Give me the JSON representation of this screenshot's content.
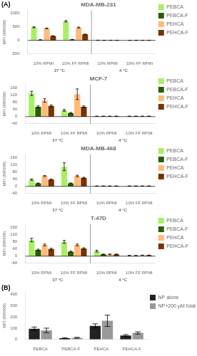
{
  "chart_data": [
    {
      "type": "bar",
      "title": "MDA-MB-231",
      "panel_label": "(A)",
      "categories": [
        "10% RPMI",
        "10% FF RPMI",
        "10% RPMI",
        "10% FF RPMI"
      ],
      "series": [
        {
          "name": "PEBCA",
          "color": "#aaee66",
          "values": [
            480,
            700,
            5,
            3
          ],
          "errors": [
            18,
            25,
            3,
            2
          ]
        },
        {
          "name": "PEBCA-F",
          "color": "#2a5e00",
          "values": [
            20,
            30,
            3,
            3
          ],
          "errors": [
            5,
            5,
            2,
            2
          ]
        },
        {
          "name": "PEHCA",
          "color": "#ffbb77",
          "values": [
            440,
            470,
            4,
            3
          ],
          "errors": [
            15,
            18,
            2,
            2
          ]
        },
        {
          "name": "PEHCA-F",
          "color": "#7a3300",
          "values": [
            160,
            220,
            3,
            3
          ],
          "errors": [
            8,
            12,
            2,
            2
          ]
        }
      ],
      "ylabel": "MFI (NR668)",
      "ylim": [
        -500,
        1100
      ],
      "yticks": [
        -500,
        0,
        500,
        1000
      ],
      "annotations": [
        "37 °C",
        "4 °C"
      ],
      "legend": "right",
      "grid": false
    },
    {
      "type": "bar",
      "title": "MCF-7",
      "categories": [
        "10% RPMI",
        "10% FF RPMI",
        "10% RPMI",
        "10% FF RPMI"
      ],
      "series": [
        {
          "name": "PEBCA",
          "color": "#aaee66",
          "values": [
            130,
            35,
            2,
            2
          ],
          "errors": [
            12,
            5,
            1,
            1
          ]
        },
        {
          "name": "PEBCA-F",
          "color": "#2a5e00",
          "values": [
            55,
            20,
            2,
            2
          ],
          "errors": [
            5,
            3,
            1,
            1
          ]
        },
        {
          "name": "PEHCA",
          "color": "#ffbb77",
          "values": [
            90,
            125,
            2,
            2
          ],
          "errors": [
            10,
            30,
            1,
            1
          ]
        },
        {
          "name": "PEHCA-F",
          "color": "#7a3300",
          "values": [
            60,
            55,
            2,
            2
          ],
          "errors": [
            5,
            5,
            1,
            1
          ]
        }
      ],
      "ylabel": "MFI (NR668)",
      "ylim": [
        -40,
        180
      ],
      "yticks": [
        -40,
        0,
        40,
        80,
        120,
        160
      ],
      "annotations": [
        "37 °C",
        "4 °C"
      ],
      "legend": "right",
      "grid": false
    },
    {
      "type": "bar",
      "title": "MDA-MB-468",
      "categories": [
        "10% RPMI",
        "10% FF RPMI",
        "10% RPMI",
        "10% FF RPMI"
      ],
      "series": [
        {
          "name": "PEBCA",
          "color": "#aaee66",
          "values": [
            38,
            110,
            2,
            2
          ],
          "errors": [
            4,
            22,
            1,
            1
          ]
        },
        {
          "name": "PEBCA-F",
          "color": "#2a5e00",
          "values": [
            17,
            17,
            2,
            2
          ],
          "errors": [
            2,
            2,
            1,
            1
          ]
        },
        {
          "name": "PEHCA",
          "color": "#ffbb77",
          "values": [
            58,
            58,
            2,
            2
          ],
          "errors": [
            3,
            4,
            1,
            1
          ]
        },
        {
          "name": "PEHCA-F",
          "color": "#7a3300",
          "values": [
            38,
            48,
            2,
            2
          ],
          "errors": [
            3,
            3,
            1,
            1
          ]
        }
      ],
      "ylabel": "MFI (NR668)",
      "ylim": [
        -40,
        180
      ],
      "yticks": [
        -40,
        0,
        40,
        80,
        120,
        160
      ],
      "annotations": [
        "37 °C",
        "4 °C"
      ],
      "legend": "right",
      "grid": false
    },
    {
      "type": "bar",
      "title": "T-47D",
      "categories": [
        "10% RPMI",
        "10% FF RPMI",
        "10% RPMI",
        "10% FF RPMI"
      ],
      "series": [
        {
          "name": "PEBCA",
          "color": "#aaee66",
          "values": [
            90,
            80,
            28,
            3
          ],
          "errors": [
            10,
            8,
            5,
            2
          ]
        },
        {
          "name": "PEBCA-F",
          "color": "#2a5e00",
          "values": [
            35,
            25,
            10,
            3
          ],
          "errors": [
            4,
            3,
            2,
            1
          ]
        },
        {
          "name": "PEHCA",
          "color": "#ffbb77",
          "values": [
            63,
            63,
            10,
            5
          ],
          "errors": [
            5,
            5,
            2,
            1
          ]
        },
        {
          "name": "PEHCA-F",
          "color": "#7a3300",
          "values": [
            40,
            43,
            10,
            5
          ],
          "errors": [
            4,
            4,
            2,
            1
          ]
        }
      ],
      "ylabel": "MFI (NR668)",
      "ylim": [
        -40,
        180
      ],
      "yticks": [
        -40,
        0,
        40,
        80,
        120,
        160
      ],
      "annotations": [
        "37 °C",
        "4 °C"
      ],
      "legend": "right",
      "grid": false
    },
    {
      "type": "bar",
      "panel_label": "(B)",
      "categories": [
        "PEBCA",
        "PEBCA-F",
        "PEHCA",
        "PEHCA-F"
      ],
      "series": [
        {
          "name": "NP alone",
          "color": "#222222",
          "values": [
            95,
            12,
            120,
            35
          ],
          "errors": [
            15,
            4,
            18,
            8
          ]
        },
        {
          "name": "NP+200 μM folate",
          "color": "#999999",
          "values": [
            80,
            15,
            165,
            58
          ],
          "errors": [
            20,
            4,
            50,
            10
          ]
        }
      ],
      "ylabel": "MFI (NR668)",
      "ylim": [
        0,
        420
      ],
      "yticks": [
        0,
        100,
        200,
        300,
        400
      ],
      "legend": "right",
      "grid": false
    }
  ]
}
